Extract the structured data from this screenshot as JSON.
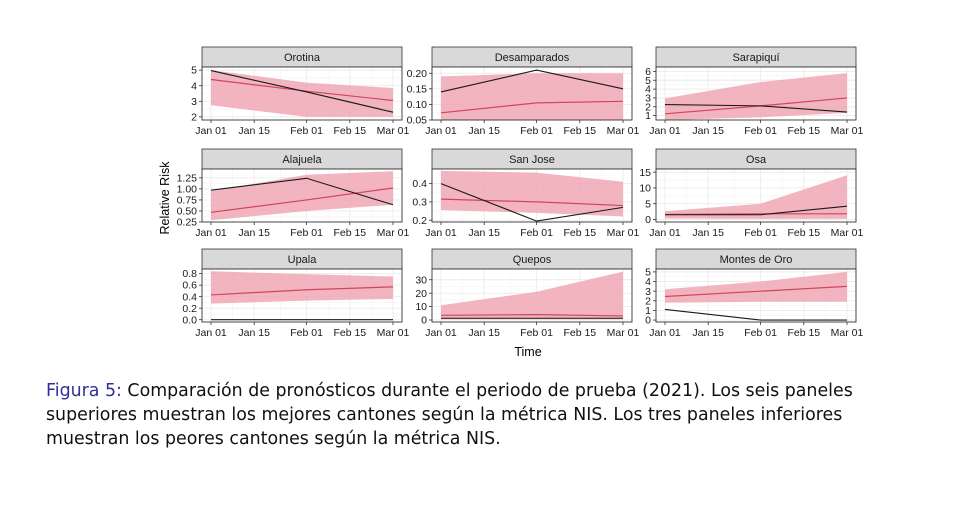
{
  "chart_data": {
    "type": "line",
    "xlabel": "Time",
    "ylabel": "Relative Risk",
    "x": [
      "Jan 01",
      "Feb 01",
      "Mar 01"
    ],
    "x_ticks": [
      "Jan 01",
      "Jan 15",
      "Feb 01",
      "Feb 15",
      "Mar 01"
    ],
    "grid": true,
    "legend": "none",
    "colors": {
      "observed": "#1a1a1a",
      "forecast": "#d0455e",
      "band": "#eea0ae",
      "strip": "#d9d9d9",
      "grid": "#ebebeb"
    },
    "panels": [
      {
        "title": "Orotina",
        "yticks": [
          "2",
          "3",
          "4",
          "5"
        ],
        "ylim": [
          1.8,
          5.2
        ],
        "observed": [
          4.97,
          3.6,
          2.3
        ],
        "forecast": [
          4.4,
          3.65,
          3.05
        ],
        "lower": [
          2.75,
          2.0,
          2.0
        ],
        "upper": [
          5.0,
          4.2,
          3.85
        ]
      },
      {
        "title": "Desamparados",
        "yticks": [
          "0.05",
          "0.10",
          "0.15",
          "0.20"
        ],
        "ylim": [
          0.05,
          0.22
        ],
        "observed": [
          0.14,
          0.21,
          0.15
        ],
        "forecast": [
          0.073,
          0.105,
          0.11
        ],
        "lower": [
          0.05,
          0.05,
          0.05
        ],
        "upper": [
          0.19,
          0.2,
          0.2
        ]
      },
      {
        "title": "Sarapiquí",
        "yticks": [
          "1",
          "2",
          "3",
          "4",
          "5",
          "6"
        ],
        "ylim": [
          0.5,
          6.5
        ],
        "observed": [
          2.25,
          2.1,
          1.4
        ],
        "forecast": [
          1.2,
          2.1,
          3.0
        ],
        "lower": [
          0.5,
          0.8,
          1.3
        ],
        "upper": [
          2.95,
          4.8,
          5.8
        ]
      },
      {
        "title": "Alajuela",
        "yticks": [
          "0.25",
          "0.50",
          "0.75",
          "1.00",
          "1.25"
        ],
        "ylim": [
          0.25,
          1.45
        ],
        "observed": [
          0.97,
          1.24,
          0.64
        ],
        "forecast": [
          0.47,
          0.75,
          1.02
        ],
        "lower": [
          0.29,
          0.5,
          0.64
        ],
        "upper": [
          0.95,
          1.32,
          1.4
        ]
      },
      {
        "title": "San Jose",
        "yticks": [
          "0.2",
          "0.3",
          "0.4"
        ],
        "ylim": [
          0.19,
          0.48
        ],
        "observed": [
          0.4,
          0.195,
          0.27
        ],
        "forecast": [
          0.315,
          0.3,
          0.28
        ],
        "lower": [
          0.255,
          0.24,
          0.22
        ],
        "upper": [
          0.47,
          0.46,
          0.41
        ]
      },
      {
        "title": "Osa",
        "yticks": [
          "0",
          "5",
          "10",
          "15"
        ],
        "ylim": [
          -0.8,
          16
        ],
        "observed": [
          1.5,
          1.5,
          4.2
        ],
        "forecast": [
          1.6,
          1.8,
          1.8
        ],
        "lower": [
          0.3,
          0.2,
          0.2
        ],
        "upper": [
          2.6,
          5.0,
          14.0
        ]
      },
      {
        "title": "Upala",
        "yticks": [
          "0.0",
          "0.2",
          "0.4",
          "0.6",
          "0.8"
        ],
        "ylim": [
          -0.04,
          0.88
        ],
        "observed": [
          0.0,
          0.0,
          0.0
        ],
        "forecast": [
          0.43,
          0.52,
          0.57
        ],
        "lower": [
          0.28,
          0.33,
          0.36
        ],
        "upper": [
          0.84,
          0.79,
          0.75
        ]
      },
      {
        "title": "Quepos",
        "yticks": [
          "0",
          "10",
          "20",
          "30"
        ],
        "ylim": [
          -1.5,
          38
        ],
        "observed": [
          1.3,
          1.3,
          1.3
        ],
        "forecast": [
          3.5,
          4.0,
          3.0
        ],
        "lower": [
          0.5,
          0.5,
          0.5
        ],
        "upper": [
          11.0,
          21.0,
          36.0
        ]
      },
      {
        "title": "Montes de Oro",
        "yticks": [
          "0",
          "1",
          "2",
          "3",
          "4",
          "5"
        ],
        "ylim": [
          -0.2,
          5.3
        ],
        "observed": [
          1.1,
          0.0,
          0.0
        ],
        "forecast": [
          2.45,
          3.0,
          3.5
        ],
        "lower": [
          1.8,
          1.9,
          1.9
        ],
        "upper": [
          3.2,
          4.0,
          5.0
        ]
      }
    ]
  },
  "caption": {
    "label": "Figura 5:",
    "text": "Comparación de pronósticos durante el periodo de prueba (2021). Los seis paneles superiores muestran los mejores cantones según la métrica NIS. Los tres paneles inferiores muestran los peores cantones según la métrica NIS."
  }
}
